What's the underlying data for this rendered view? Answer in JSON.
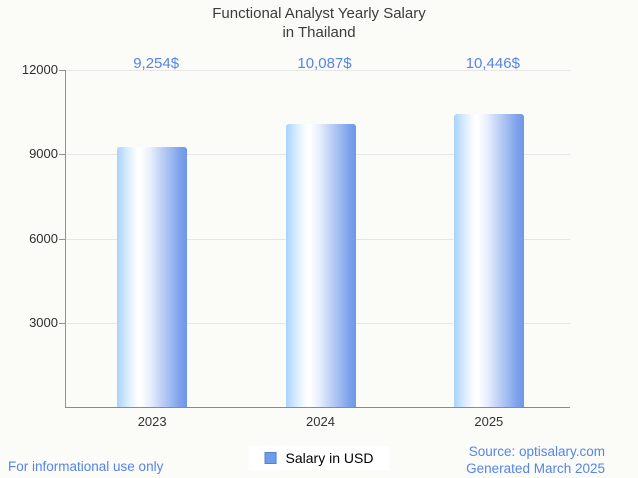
{
  "title": {
    "line1": "Functional Analyst Yearly Salary",
    "line2": "in Thailand"
  },
  "chart_data": {
    "type": "bar",
    "categories": [
      "2023",
      "2024",
      "2025"
    ],
    "series": [
      {
        "name": "Salary in USD",
        "values": [
          9254,
          10087,
          10446
        ]
      }
    ],
    "value_labels": [
      "9,254$",
      "10,087$",
      "10,446$"
    ],
    "ylim": [
      0,
      12000
    ],
    "yticks": [
      3000,
      6000,
      9000,
      12000
    ],
    "ytick_labels": [
      "3000",
      "6000",
      "9000",
      "12000"
    ],
    "grid": true,
    "legend_position": "bottom",
    "title": "Functional Analyst Yearly Salary in Thailand"
  },
  "legend": {
    "label": "Salary in USD",
    "swatch_color": "#6d9ceb"
  },
  "footer": {
    "left": "For informational use only",
    "source": "Source: optisalary.com",
    "generated": "Generated March 2025"
  },
  "colors": {
    "background": "#fbfbf8",
    "title_text": "#3c3c3c",
    "accent_blue": "#5585e9",
    "bar_edge_blue": "#6e97ea",
    "bar_light_blue": "#a9d2fb",
    "gridline": "#e6e6e6",
    "axis": "#919191"
  }
}
